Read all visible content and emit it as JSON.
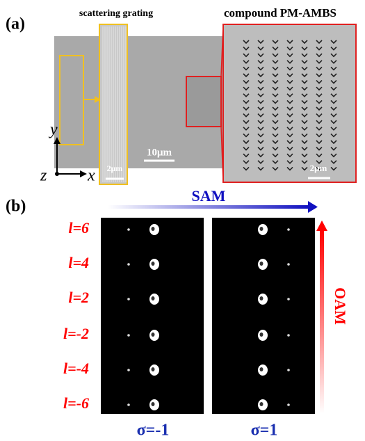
{
  "panel_a": {
    "label": "(a)",
    "grating_title": "scattering grating",
    "compound_title": "compound PM-AMBS",
    "scale_main": "10μm",
    "scale_grating": "2μm",
    "scale_compound": "2μm",
    "axis_y": "y",
    "axis_z": "z",
    "axis_x": "x"
  },
  "panel_b": {
    "label": "(b)",
    "sam": "SAM",
    "oam": "OAM",
    "oam_labels": [
      "l=6",
      "l=4",
      "l=2",
      "l=-2",
      "l=-4",
      "l=-6"
    ],
    "sigma_labels": [
      "σ=-1",
      "σ=1"
    ]
  }
}
